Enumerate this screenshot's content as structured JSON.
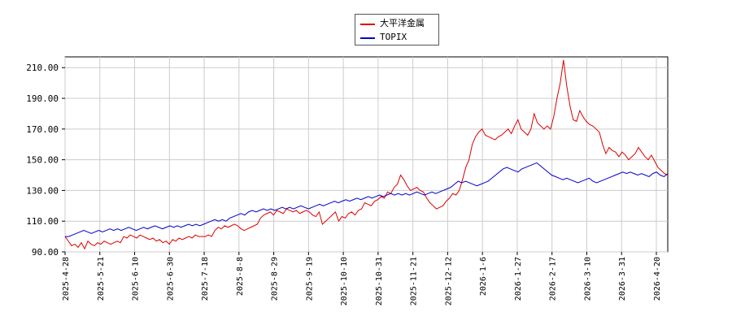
{
  "chart_data": {
    "type": "line",
    "ylim": [
      90,
      217
    ],
    "y_ticks": [
      "90.00",
      "110.00",
      "130.00",
      "150.00",
      "170.00",
      "190.00",
      "210.00"
    ],
    "y_tick_values": [
      90,
      110,
      130,
      150,
      170,
      190,
      210
    ],
    "x_ticks": [
      "2025-4-28",
      "2025-5-21",
      "2025-6-10",
      "2025-6-30",
      "2025-7-18",
      "2025-8-8",
      "2025-8-29",
      "2025-9-19",
      "2025-10-10",
      "2025-10-31",
      "2025-11-21",
      "2025-12-12",
      "2026-1-6",
      "2026-1-27",
      "2026-2-17",
      "2026-3-10",
      "2026-3-31",
      "2026-4-20"
    ],
    "grid": true,
    "legend_position": "top-center",
    "series": [
      {
        "name": "大平洋金属",
        "color": "#dd0000",
        "values": [
          100,
          97,
          94,
          95,
          93,
          96,
          92,
          97,
          95,
          94,
          96,
          95,
          97,
          96,
          95,
          96,
          97,
          96,
          100,
          99,
          101,
          100,
          99,
          101,
          100,
          99,
          98,
          99,
          97,
          98,
          96,
          97,
          95,
          98,
          97,
          99,
          98,
          99,
          100,
          99,
          101,
          100,
          100,
          100,
          101,
          100,
          104,
          106,
          105,
          107,
          106,
          107,
          108,
          107,
          105,
          104,
          105,
          106,
          107,
          108,
          112,
          114,
          115,
          116,
          114,
          117,
          116,
          115,
          118,
          117,
          116,
          117,
          115,
          116,
          117,
          116,
          114,
          113,
          116,
          108,
          110,
          112,
          114,
          116,
          110,
          113,
          112,
          115,
          116,
          114,
          117,
          118,
          122,
          121,
          120,
          123,
          124,
          126,
          125,
          129,
          128,
          132,
          134,
          140,
          137,
          133,
          130,
          131,
          132,
          130,
          129,
          125,
          122,
          120,
          118,
          119,
          120,
          123,
          125,
          128,
          127,
          130,
          137,
          145,
          150,
          160,
          165,
          168,
          170,
          166,
          165,
          164,
          163,
          165,
          166,
          168,
          170,
          167,
          172,
          176,
          170,
          168,
          166,
          170,
          180,
          174,
          172,
          170,
          172,
          170,
          178,
          190,
          200,
          215,
          198,
          185,
          176,
          175,
          182,
          178,
          175,
          173,
          172,
          170,
          168,
          160,
          154,
          158,
          156,
          155,
          152,
          155,
          153,
          150,
          152,
          154,
          158,
          155,
          152,
          150,
          153,
          149,
          145,
          143,
          141,
          140
        ]
      },
      {
        "name": "TOPIX",
        "color": "#0000cc",
        "values": [
          100,
          100,
          101,
          102,
          103,
          104,
          103,
          102,
          103,
          104,
          103,
          104,
          105,
          104,
          105,
          104,
          105,
          106,
          105,
          104,
          105,
          106,
          105,
          106,
          107,
          106,
          105,
          106,
          107,
          106,
          107,
          106,
          107,
          108,
          107,
          108,
          107,
          108,
          109,
          110,
          111,
          110,
          111,
          110,
          112,
          113,
          114,
          115,
          114,
          116,
          117,
          116,
          117,
          118,
          117,
          118,
          117,
          118,
          119,
          118,
          119,
          118,
          119,
          120,
          119,
          118,
          119,
          120,
          121,
          120,
          121,
          122,
          123,
          122,
          123,
          124,
          123,
          124,
          125,
          124,
          125,
          126,
          125,
          126,
          127,
          126,
          127,
          128,
          127,
          128,
          127,
          128,
          127,
          128,
          129,
          128,
          127,
          128,
          129,
          128,
          129,
          130,
          131,
          132,
          134,
          136,
          135,
          136,
          135,
          134,
          133,
          134,
          135,
          136,
          138,
          140,
          142,
          144,
          145,
          144,
          143,
          142,
          144,
          145,
          146,
          147,
          148,
          146,
          144,
          142,
          140,
          139,
          138,
          137,
          138,
          137,
          136,
          135,
          136,
          137,
          138,
          136,
          135,
          136,
          137,
          138,
          139,
          140,
          141,
          142,
          141,
          142,
          141,
          140,
          141,
          140,
          139,
          141,
          142,
          140,
          139,
          141
        ]
      }
    ]
  }
}
